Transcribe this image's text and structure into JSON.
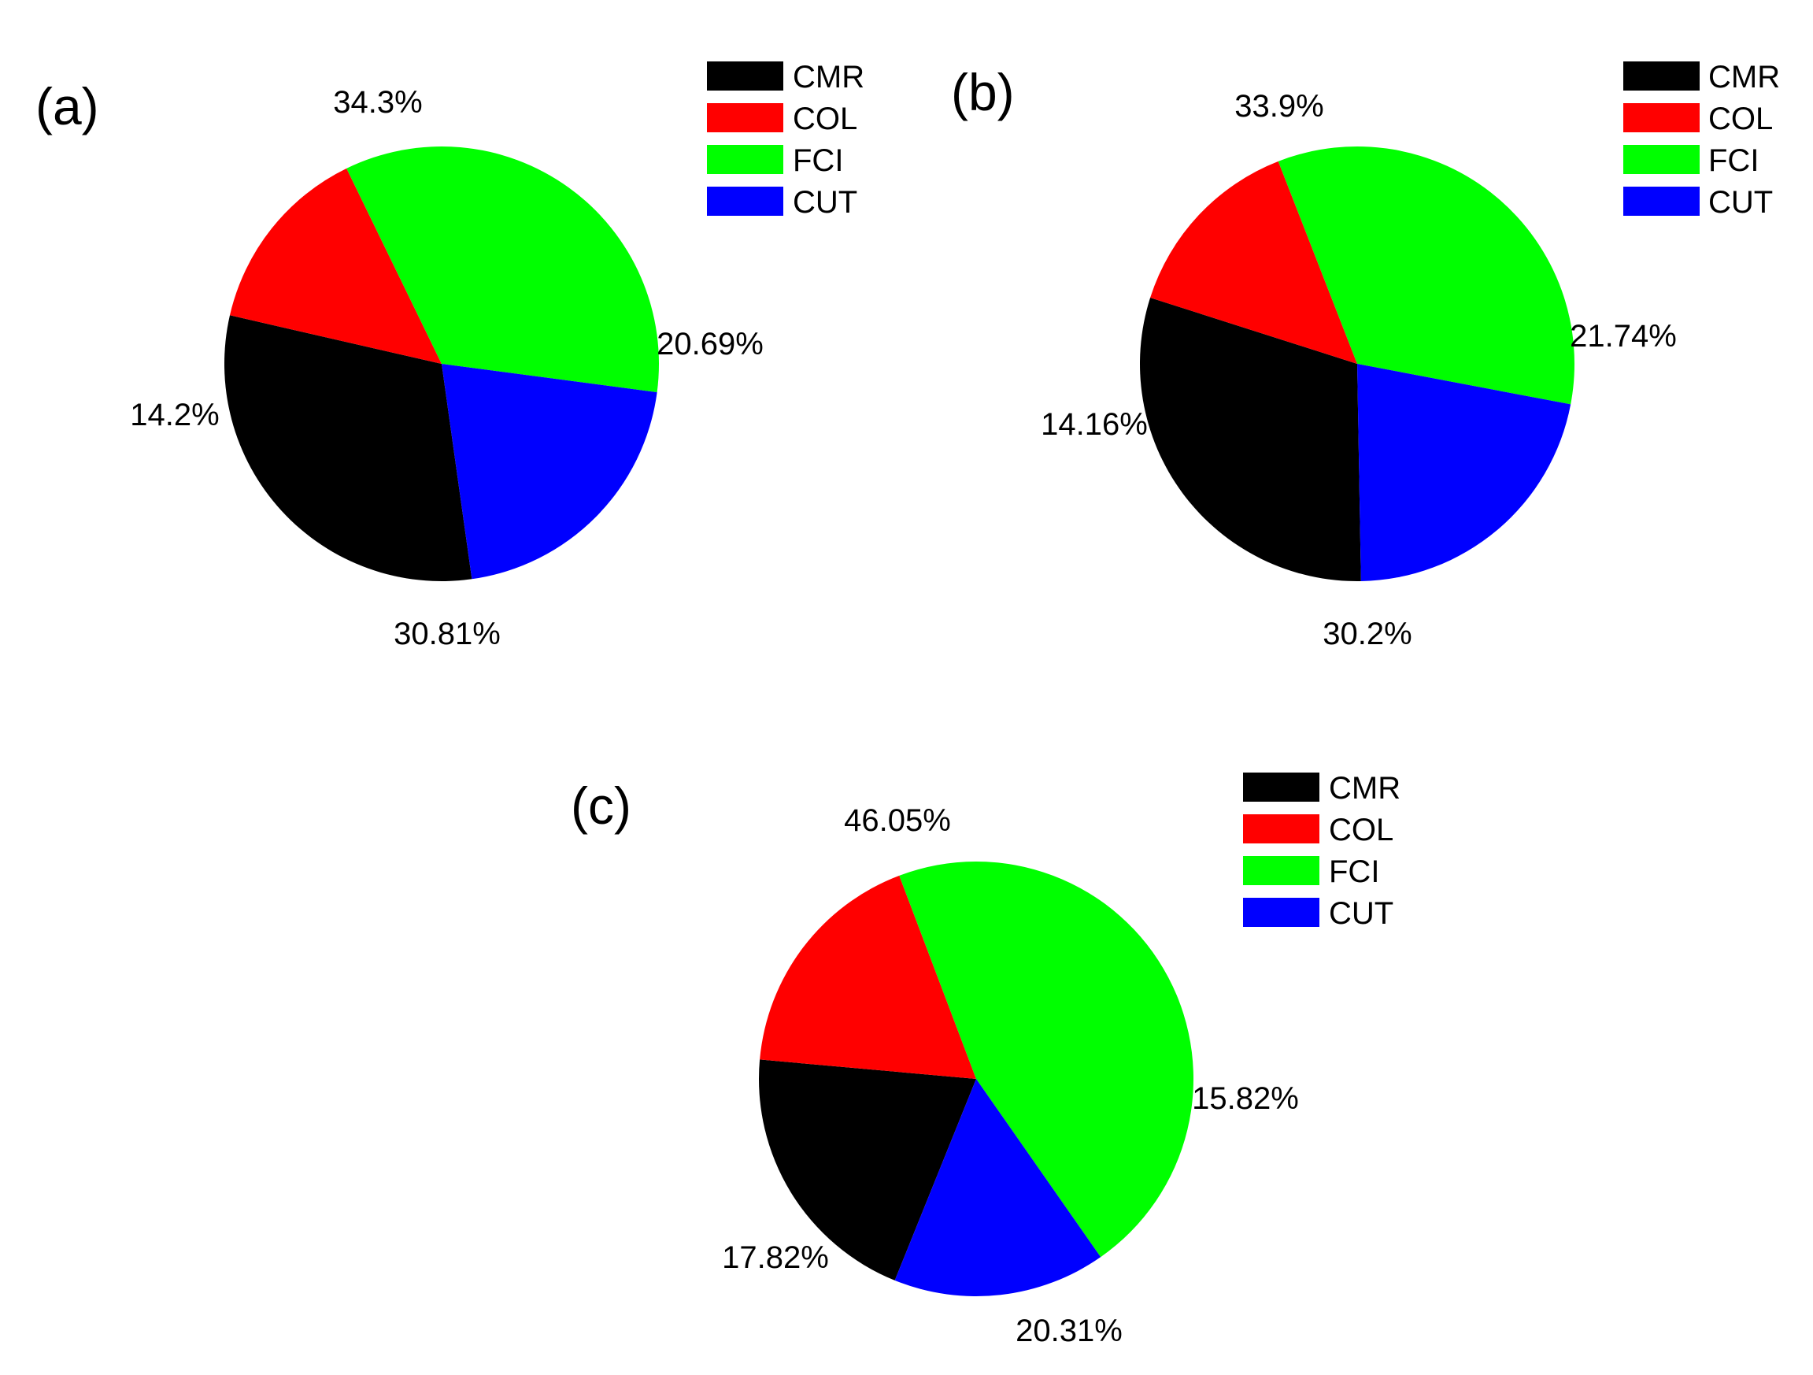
{
  "chart_data": [
    {
      "type": "pie",
      "panel_label": "(a)",
      "categories": [
        "CMR",
        "COL",
        "FCI",
        "CUT"
      ],
      "values": [
        30.81,
        14.2,
        34.3,
        20.69
      ],
      "labels": [
        "30.81%",
        "14.2%",
        "34.3%",
        "20.69%"
      ],
      "legend_position": "top-right"
    },
    {
      "type": "pie",
      "panel_label": "(b)",
      "categories": [
        "CMR",
        "COL",
        "FCI",
        "CUT"
      ],
      "values": [
        30.2,
        14.16,
        33.9,
        21.74
      ],
      "labels": [
        "30.2%",
        "14.16%",
        "33.9%",
        "21.74%"
      ],
      "legend_position": "top-right"
    },
    {
      "type": "pie",
      "panel_label": "(c)",
      "categories": [
        "CMR",
        "COL",
        "FCI",
        "CUT"
      ],
      "values": [
        20.31,
        17.82,
        46.05,
        15.82
      ],
      "labels": [
        "20.31%",
        "17.82%",
        "46.05%",
        "15.82%"
      ],
      "legend_position": "top-right"
    }
  ],
  "colors": {
    "CMR": "#000000",
    "COL": "#ff0000",
    "FCI": "#00ff00",
    "CUT": "#0000ff"
  }
}
